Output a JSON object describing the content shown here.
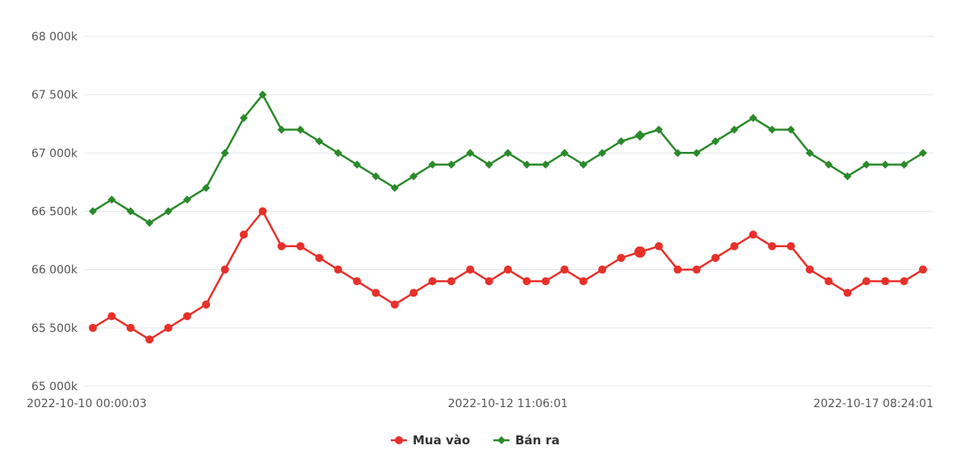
{
  "chart_data": {
    "type": "line",
    "title": "",
    "xlabel": "",
    "ylabel": "",
    "ylim": [
      65000,
      68000
    ],
    "y_ticks": [
      65000,
      65500,
      66000,
      66500,
      67000,
      67500,
      68000
    ],
    "y_tick_labels": [
      "65 000k",
      "65 500k",
      "66 000k",
      "66 500k",
      "67 000k",
      "67 500k",
      "68 000k"
    ],
    "x_tick_labels": [
      {
        "index": 0,
        "label": "2022-10-10 00:00:03"
      },
      {
        "index": 22,
        "label": "2022-10-12 11:06:01"
      },
      {
        "index": 44,
        "label": "2022-10-17 08:24:01"
      }
    ],
    "grid": true,
    "legend_position": "bottom-center",
    "series": [
      {
        "name": "Mua vào",
        "color": "#e8302a",
        "marker": "circle",
        "values": [
          65500,
          65600,
          65500,
          65400,
          65500,
          65600,
          65700,
          66000,
          66300,
          66500,
          66200,
          66200,
          66100,
          66000,
          65900,
          65800,
          65700,
          65800,
          65900,
          65900,
          66000,
          65900,
          66000,
          65900,
          65900,
          66000,
          65900,
          66000,
          66100,
          66150,
          66200,
          66000,
          66000,
          66100,
          66200,
          66300,
          66200,
          66200,
          66000,
          65900,
          65800,
          65900,
          65900,
          65900,
          66000
        ]
      },
      {
        "name": "Bán ra",
        "color": "#2a8a2a",
        "marker": "diamond",
        "values": [
          66500,
          66600,
          66500,
          66400,
          66500,
          66600,
          66700,
          67000,
          67300,
          67500,
          67200,
          67200,
          67100,
          67000,
          66900,
          66800,
          66700,
          66800,
          66900,
          66900,
          67000,
          66900,
          67000,
          66900,
          66900,
          67000,
          66900,
          67000,
          67100,
          67150,
          67200,
          67000,
          67000,
          67100,
          67200,
          67300,
          67200,
          67200,
          67000,
          66900,
          66800,
          66900,
          66900,
          66900,
          67000
        ]
      }
    ]
  }
}
